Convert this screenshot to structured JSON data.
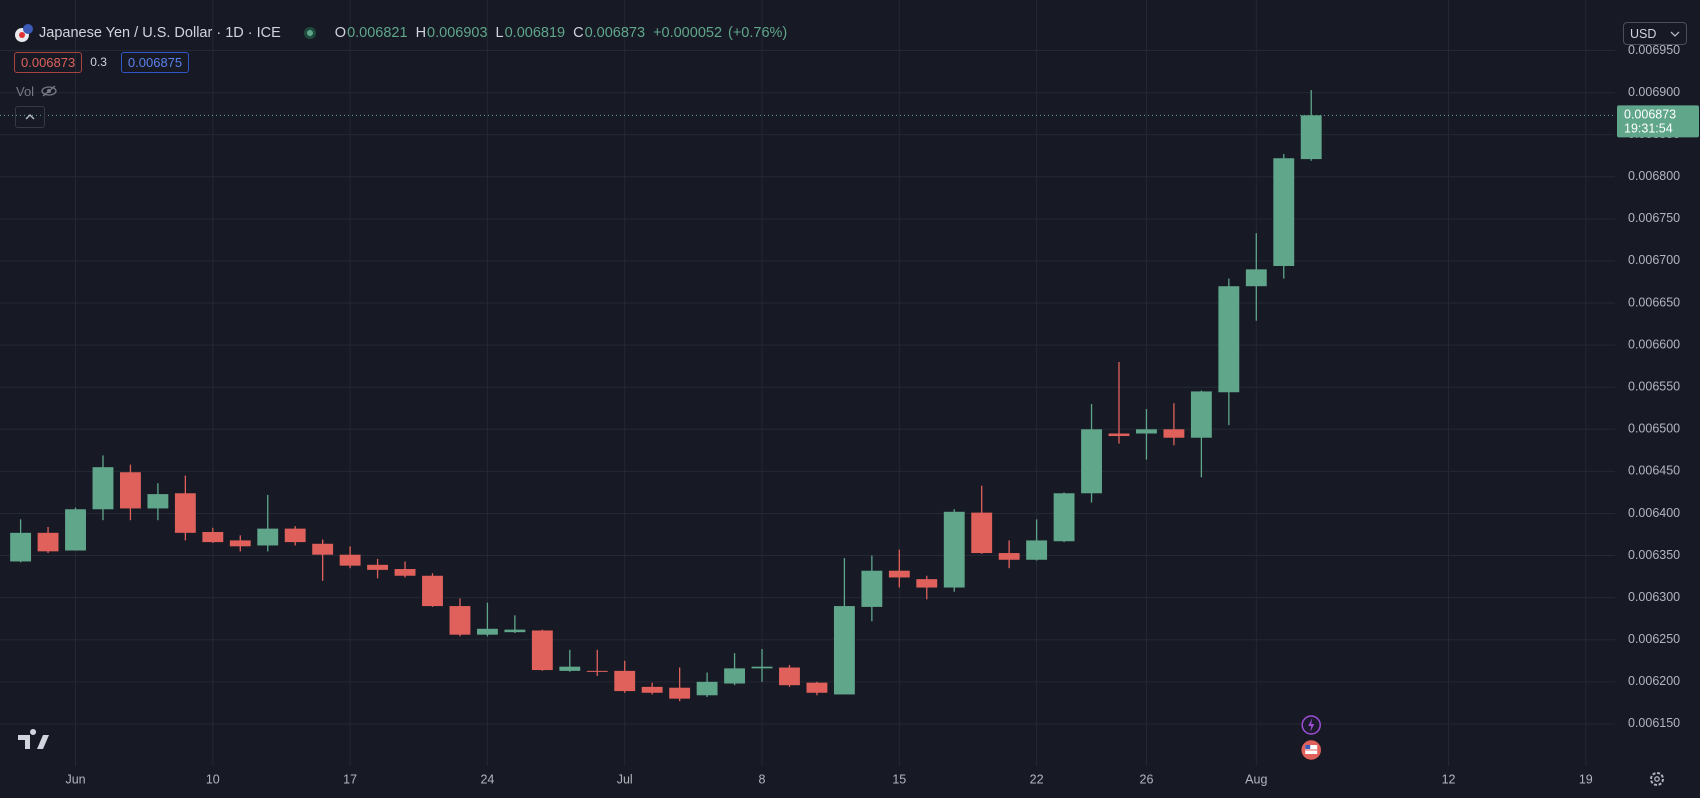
{
  "header": {
    "symbol": "Japanese Yen / U.S. Dollar · 1D · ICE",
    "o_label": "O",
    "h_label": "H",
    "l_label": "L",
    "c_label": "C",
    "change": "+0.000052",
    "change_pct": "(+0.76%)",
    "spread": "0.3",
    "buy_price": "0.006875",
    "volume_label": "Vol",
    "currency": "USD",
    "countdown": "19:31:54"
  },
  "chart_data": {
    "type": "candlestick",
    "categories": [
      null,
      null,
      "Jun",
      null,
      null,
      null,
      null,
      "10",
      null,
      null,
      null,
      null,
      "17",
      null,
      null,
      null,
      null,
      "24",
      null,
      null,
      null,
      null,
      "Jul",
      null,
      null,
      null,
      null,
      "8",
      null,
      null,
      null,
      null,
      "15",
      null,
      null,
      null,
      null,
      "22",
      null,
      null,
      null,
      "26",
      null,
      null,
      null,
      "Aug",
      null,
      null,
      null,
      null,
      null,
      null,
      "12",
      null,
      null,
      null,
      null,
      "19"
    ],
    "open": [
      0.006343,
      0.006377,
      0.006356,
      0.006405,
      0.006449,
      0.006406,
      0.006424,
      0.006378,
      0.006368,
      0.006362,
      0.006382,
      0.006364,
      0.006351,
      0.006339,
      0.006334,
      0.006326,
      0.00629,
      0.006256,
      0.006259,
      0.006261,
      0.006213,
      0.006213,
      0.006213,
      0.006194,
      0.006193,
      0.006184,
      0.006198,
      0.006216,
      0.006217,
      0.006199,
      0.006185,
      0.006289,
      0.006332,
      0.006322,
      0.006312,
      0.006401,
      0.006353,
      0.006345,
      0.006367,
      0.006424,
      0.006495,
      0.006495,
      0.0065,
      0.00649,
      0.006544,
      0.00667,
      0.006694,
      0.006821,
      null,
      null,
      null,
      null,
      null,
      null,
      null,
      null,
      null,
      null
    ],
    "high": [
      0.006393,
      0.006384,
      0.006407,
      0.006469,
      0.006458,
      0.006436,
      0.006445,
      0.006383,
      0.006374,
      0.006422,
      0.006385,
      0.006369,
      0.006361,
      0.006346,
      0.006343,
      0.006329,
      0.006299,
      0.006294,
      0.006279,
      0.006262,
      0.006238,
      0.006238,
      0.006225,
      0.006199,
      0.006217,
      0.006211,
      0.006234,
      0.006239,
      0.00622,
      0.0062,
      0.006347,
      0.00635,
      0.006357,
      0.006326,
      0.006405,
      0.006433,
      0.006368,
      0.006393,
      0.006425,
      0.00653,
      0.00658,
      0.006524,
      0.006531,
      0.006546,
      0.006679,
      0.006733,
      0.006827,
      0.006903,
      null,
      null,
      null,
      null,
      null,
      null,
      null,
      null,
      null,
      null
    ],
    "low": [
      0.006342,
      0.006353,
      0.006356,
      0.006392,
      0.006392,
      0.006392,
      0.006368,
      0.006365,
      0.006355,
      0.006355,
      0.006362,
      0.00632,
      0.006335,
      0.006323,
      0.006324,
      0.006289,
      0.006254,
      0.006254,
      0.006258,
      0.006213,
      0.006212,
      0.006207,
      0.006187,
      0.006185,
      0.006177,
      0.006182,
      0.006196,
      0.0062,
      0.006194,
      0.006184,
      0.006185,
      0.006272,
      0.006312,
      0.006298,
      0.006307,
      0.006352,
      0.006335,
      0.006344,
      0.006366,
      0.006413,
      0.006483,
      0.006464,
      0.006481,
      0.006443,
      0.006505,
      0.006629,
      0.006679,
      0.006819,
      null,
      null,
      null,
      null,
      null,
      null,
      null,
      null,
      null,
      null
    ],
    "close": [
      0.006377,
      0.006355,
      0.006405,
      0.006455,
      0.006406,
      0.006423,
      0.006377,
      0.006366,
      0.006361,
      0.006382,
      0.006366,
      0.006351,
      0.006338,
      0.006333,
      0.006326,
      0.00629,
      0.006256,
      0.006263,
      0.006262,
      0.006214,
      0.006218,
      0.006212,
      0.006189,
      0.006187,
      0.00618,
      0.0062,
      0.006216,
      0.006218,
      0.006196,
      0.006187,
      0.00629,
      0.006332,
      0.006324,
      0.006312,
      0.006402,
      0.006353,
      0.006345,
      0.006368,
      0.006424,
      0.0065,
      0.006492,
      0.0065,
      0.00649,
      0.006545,
      0.00667,
      0.00669,
      0.006822,
      0.006873,
      null,
      null,
      null,
      null,
      null,
      null,
      null,
      null,
      null,
      null
    ],
    "up_color": "#5fa68b",
    "down_color": "#e0615b",
    "ylim": [
      0.0061,
      0.00701
    ],
    "yticks": [
      {
        "value": 0.00615,
        "label": "0.006150"
      },
      {
        "value": 0.0062,
        "label": "0.006200"
      },
      {
        "value": 0.00625,
        "label": "0.006250"
      },
      {
        "value": 0.0063,
        "label": "0.006300"
      },
      {
        "value": 0.00635,
        "label": "0.006350"
      },
      {
        "value": 0.0064,
        "label": "0.006400"
      },
      {
        "value": 0.00645,
        "label": "0.006450"
      },
      {
        "value": 0.0065,
        "label": "0.006500"
      },
      {
        "value": 0.00655,
        "label": "0.006550"
      },
      {
        "value": 0.0066,
        "label": "0.006600"
      },
      {
        "value": 0.00665,
        "label": "0.006650"
      },
      {
        "value": 0.0067,
        "label": "0.006700"
      },
      {
        "value": 0.00675,
        "label": "0.006750"
      },
      {
        "value": 0.0068,
        "label": "0.006800"
      },
      {
        "value": 0.00685,
        "label": "0.006850"
      },
      {
        "value": 0.0069,
        "label": "0.006900"
      },
      {
        "value": 0.00695,
        "label": "0.006950"
      }
    ],
    "grid": true
  }
}
